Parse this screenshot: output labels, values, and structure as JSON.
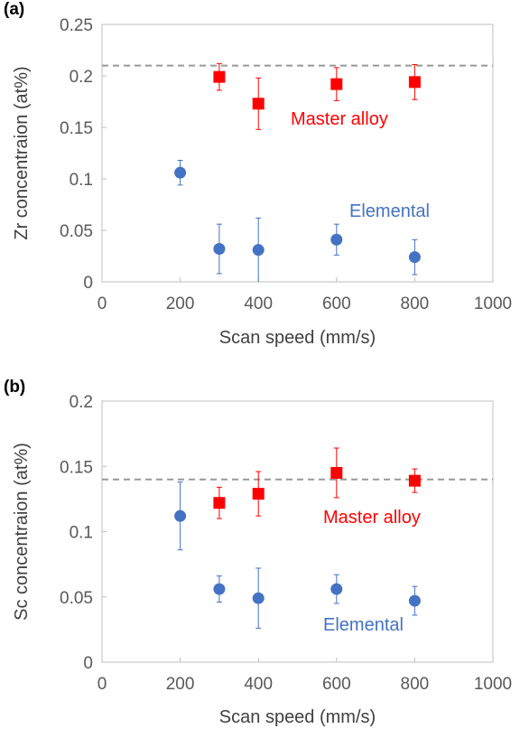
{
  "chart_data": [
    {
      "type": "scatter",
      "panel_label": "(a)",
      "title": "",
      "xlabel": "Scan speed (mm/s)",
      "ylabel": "Zr concentraion (at%)",
      "xlim": [
        0,
        1000
      ],
      "ylim": [
        0,
        0.25
      ],
      "xticks": [
        "0",
        "200",
        "400",
        "600",
        "800",
        "1000"
      ],
      "yticks": [
        "0",
        "0.05",
        "0.1",
        "0.15",
        "0.2",
        "0.25"
      ],
      "grid": false,
      "reference_line": {
        "y": 0.21,
        "style": "dashed",
        "color": "#999999"
      },
      "series": [
        {
          "name": "Master alloy",
          "marker": "square",
          "color": "#ff0000",
          "points": [
            {
              "x": 300,
              "y": 0.199,
              "err": 0.013
            },
            {
              "x": 400,
              "y": 0.173,
              "err": 0.025
            },
            {
              "x": 600,
              "y": 0.192,
              "err": 0.016
            },
            {
              "x": 800,
              "y": 0.194,
              "err": 0.017
            }
          ]
        },
        {
          "name": "Elemental",
          "marker": "circle",
          "color": "#4472c4",
          "points": [
            {
              "x": 200,
              "y": 0.106,
              "err": 0.012
            },
            {
              "x": 300,
              "y": 0.032,
              "err": 0.024
            },
            {
              "x": 400,
              "y": 0.031,
              "err": 0.031
            },
            {
              "x": 600,
              "y": 0.041,
              "err": 0.015
            },
            {
              "x": 800,
              "y": 0.024,
              "err": 0.017
            }
          ]
        }
      ]
    },
    {
      "type": "scatter",
      "panel_label": "(b)",
      "title": "",
      "xlabel": "Scan speed (mm/s)",
      "ylabel": "Sc concentraion (at%)",
      "xlim": [
        0,
        1000
      ],
      "ylim": [
        0,
        0.2
      ],
      "xticks": [
        "0",
        "200",
        "400",
        "600",
        "800",
        "1000"
      ],
      "yticks": [
        "0",
        "0.05",
        "0.1",
        "0.15",
        "0.2"
      ],
      "grid": false,
      "reference_line": {
        "y": 0.14,
        "style": "dashed",
        "color": "#999999"
      },
      "series": [
        {
          "name": "Master alloy",
          "marker": "square",
          "color": "#ff0000",
          "points": [
            {
              "x": 300,
              "y": 0.122,
              "err": 0.012
            },
            {
              "x": 400,
              "y": 0.129,
              "err": 0.017
            },
            {
              "x": 600,
              "y": 0.145,
              "err": 0.019
            },
            {
              "x": 800,
              "y": 0.139,
              "err": 0.009
            }
          ]
        },
        {
          "name": "Elemental",
          "marker": "circle",
          "color": "#4472c4",
          "points": [
            {
              "x": 200,
              "y": 0.112,
              "err": 0.026
            },
            {
              "x": 300,
              "y": 0.056,
              "err": 0.01
            },
            {
              "x": 400,
              "y": 0.049,
              "err": 0.023
            },
            {
              "x": 600,
              "y": 0.056,
              "err": 0.011
            },
            {
              "x": 800,
              "y": 0.047,
              "err": 0.011
            }
          ]
        }
      ]
    }
  ]
}
